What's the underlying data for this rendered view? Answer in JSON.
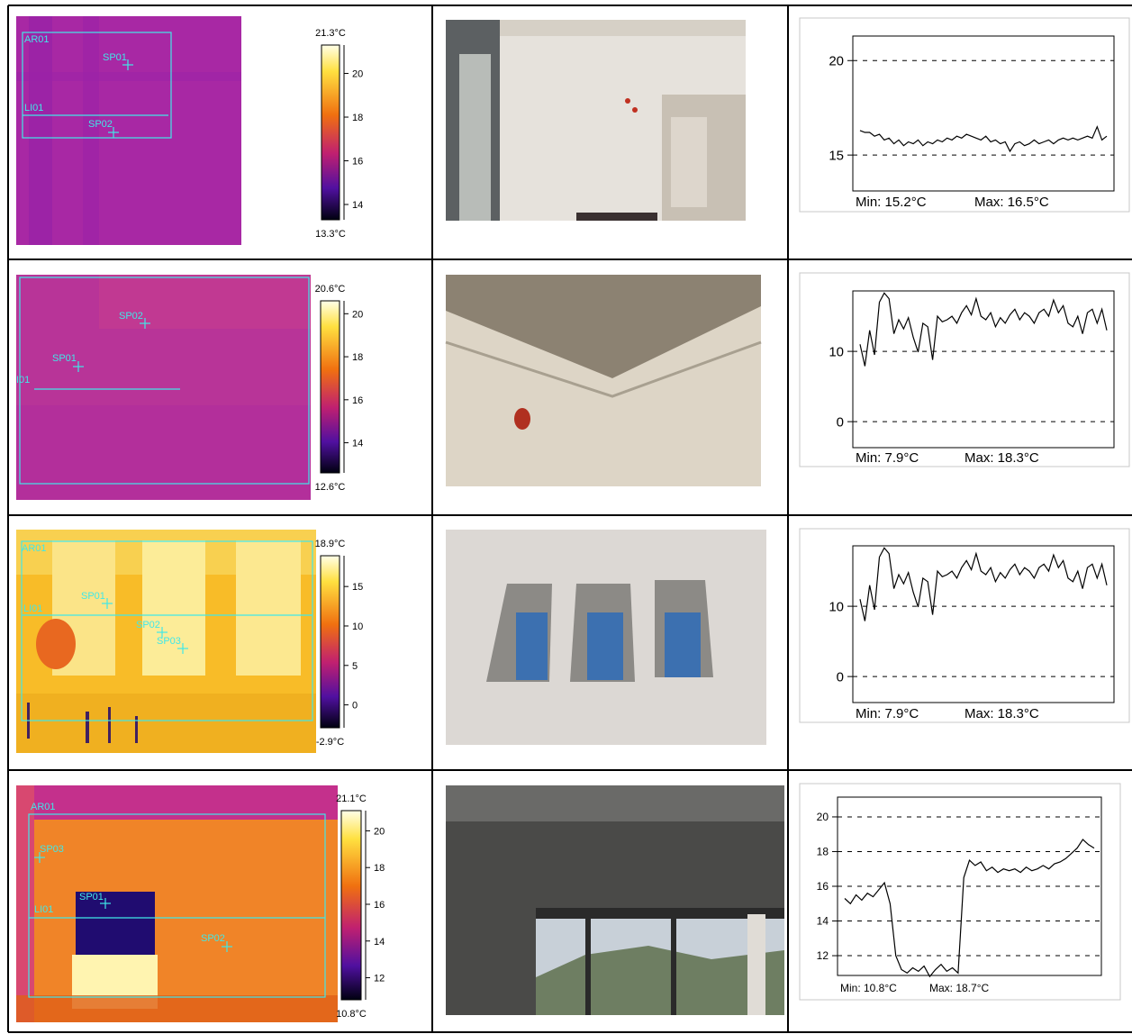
{
  "rows": [
    {
      "thermal": {
        "scale_max": {
          "value": 21.3,
          "label": "21.3°C"
        },
        "scale_min": {
          "value": 13.3,
          "label": "13.3°C"
        },
        "ticks": [
          14,
          16,
          18,
          20
        ],
        "markers": [
          "AR01",
          "SP01",
          "LI01",
          "SP02"
        ]
      },
      "chart": {
        "type": "line",
        "ylim": [
          13.1,
          21.3
        ],
        "yticks": [
          15,
          20
        ],
        "color": "#000000",
        "values": [
          16.3,
          16.2,
          16.2,
          16.0,
          16.1,
          15.8,
          15.9,
          15.6,
          15.8,
          15.5,
          15.7,
          15.6,
          15.8,
          15.5,
          15.7,
          15.6,
          15.8,
          15.7,
          15.9,
          15.8,
          16.0,
          15.9,
          16.1,
          16.0,
          15.9,
          15.8,
          16.0,
          15.7,
          15.8,
          15.6,
          15.7,
          15.2,
          15.6,
          15.7,
          15.5,
          15.6,
          15.8,
          15.6,
          15.7,
          15.8,
          15.6,
          15.8,
          15.9,
          15.8,
          15.9,
          15.8,
          15.9,
          16.0,
          15.9,
          16.5,
          15.8,
          16.0
        ],
        "min_label": "Min: 15.2°C",
        "max_label": "Max: 16.5°C"
      }
    },
    {
      "thermal": {
        "scale_max": {
          "value": 20.6,
          "label": "20.6°C"
        },
        "scale_min": {
          "value": 12.6,
          "label": "12.6°C"
        },
        "ticks": [
          14,
          16,
          18,
          20
        ],
        "markers": [
          "SP02",
          "SP01",
          "I01"
        ]
      },
      "chart": {
        "type": "line",
        "ylim": [
          -3.7,
          18.6
        ],
        "yticks": [
          0,
          10
        ],
        "color": "#000000",
        "values": [
          11.0,
          7.9,
          13.0,
          9.5,
          17.0,
          18.3,
          17.5,
          12.5,
          14.5,
          13.2,
          14.8,
          12.0,
          9.9,
          14.0,
          13.5,
          8.8,
          15.0,
          14.2,
          14.5,
          15.0,
          14.0,
          15.5,
          16.5,
          15.2,
          17.5,
          15.0,
          14.5,
          15.5,
          13.5,
          14.8,
          14.0,
          15.2,
          16.0,
          14.5,
          15.5,
          15.0,
          14.0,
          15.5,
          16.0,
          15.0,
          17.3,
          15.5,
          16.5,
          14.0,
          13.5,
          15.0,
          12.5,
          15.5,
          16.0,
          14.0,
          16.0,
          13.0
        ],
        "min_label": "Min: 7.9°C",
        "max_label": "Max: 18.3°C"
      }
    },
    {
      "thermal": {
        "scale_max": {
          "value": 18.9,
          "label": "18.9°C"
        },
        "scale_min": {
          "value": -2.9,
          "label": "-2.9°C"
        },
        "ticks": [
          0,
          5,
          10,
          15
        ],
        "markers": [
          "AR01",
          "LI01",
          "SP01",
          "SP02",
          "SP03"
        ]
      },
      "chart": {
        "type": "line",
        "ylim": [
          -3.7,
          18.6
        ],
        "yticks": [
          0,
          10
        ],
        "color": "#000000",
        "values": [
          11.0,
          7.9,
          13.0,
          9.5,
          17.0,
          18.3,
          17.5,
          12.5,
          14.5,
          13.2,
          14.8,
          12.0,
          9.9,
          14.0,
          13.5,
          8.8,
          15.0,
          14.2,
          14.5,
          15.0,
          14.0,
          15.5,
          16.5,
          15.2,
          17.5,
          15.0,
          14.5,
          15.5,
          13.5,
          14.8,
          14.0,
          15.2,
          16.0,
          14.5,
          15.5,
          15.0,
          14.0,
          15.5,
          16.0,
          15.0,
          17.3,
          15.5,
          16.5,
          14.0,
          13.5,
          15.0,
          12.5,
          15.5,
          16.0,
          14.0,
          16.0,
          13.0
        ],
        "min_label": "Min: 7.9°C",
        "max_label": "Max: 18.3°C"
      }
    },
    {
      "thermal": {
        "scale_max": {
          "value": 21.1,
          "label": "21.1°C"
        },
        "scale_min": {
          "value": 10.8,
          "label": "10.8°C"
        },
        "ticks": [
          12,
          14,
          16,
          18,
          20
        ],
        "markers": [
          "AR01",
          "SP03",
          "LI01",
          "SP01",
          "SP02"
        ]
      },
      "chart": {
        "type": "line",
        "ylim": [
          10.86,
          21.14
        ],
        "yticks": [
          12,
          14,
          16,
          18,
          20
        ],
        "color": "#000000",
        "values": [
          15.3,
          15.0,
          15.5,
          15.2,
          15.6,
          15.4,
          15.8,
          16.2,
          15.0,
          12.0,
          11.2,
          11.0,
          11.3,
          11.1,
          11.4,
          10.8,
          11.2,
          11.5,
          11.1,
          11.3,
          11.0,
          16.5,
          17.5,
          17.2,
          17.4,
          16.9,
          17.1,
          16.8,
          17.0,
          16.9,
          17.0,
          16.8,
          17.1,
          16.9,
          17.0,
          17.2,
          17.0,
          17.3,
          17.4,
          17.6,
          17.9,
          18.2,
          18.7,
          18.4,
          18.2
        ],
        "min_label": "Min: 10.8°C",
        "max_label": "Max: 18.7°C"
      }
    }
  ]
}
